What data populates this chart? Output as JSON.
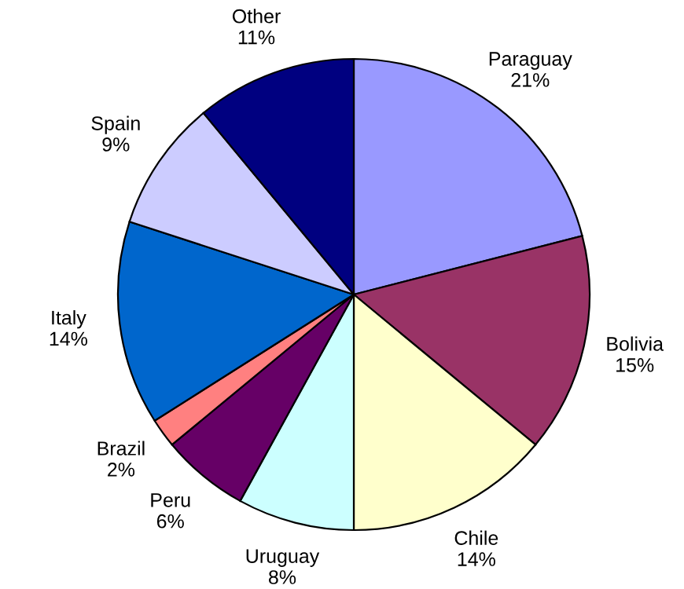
{
  "chart_data": {
    "type": "pie",
    "categories": [
      "Paraguay",
      "Bolivia",
      "Chile",
      "Uruguay",
      "Peru",
      "Brazil",
      "Italy",
      "Spain",
      "Other"
    ],
    "values": [
      21,
      15,
      14,
      8,
      6,
      2,
      14,
      9,
      11
    ],
    "value_labels": [
      "21%",
      "15%",
      "14%",
      "8%",
      "6%",
      "2%",
      "14%",
      "9%",
      "11%"
    ],
    "colors": [
      "#9999ff",
      "#993366",
      "#ffffcc",
      "#ccffff",
      "#660066",
      "#ff8080",
      "#0066cc",
      "#ccccff",
      "#000080"
    ]
  }
}
